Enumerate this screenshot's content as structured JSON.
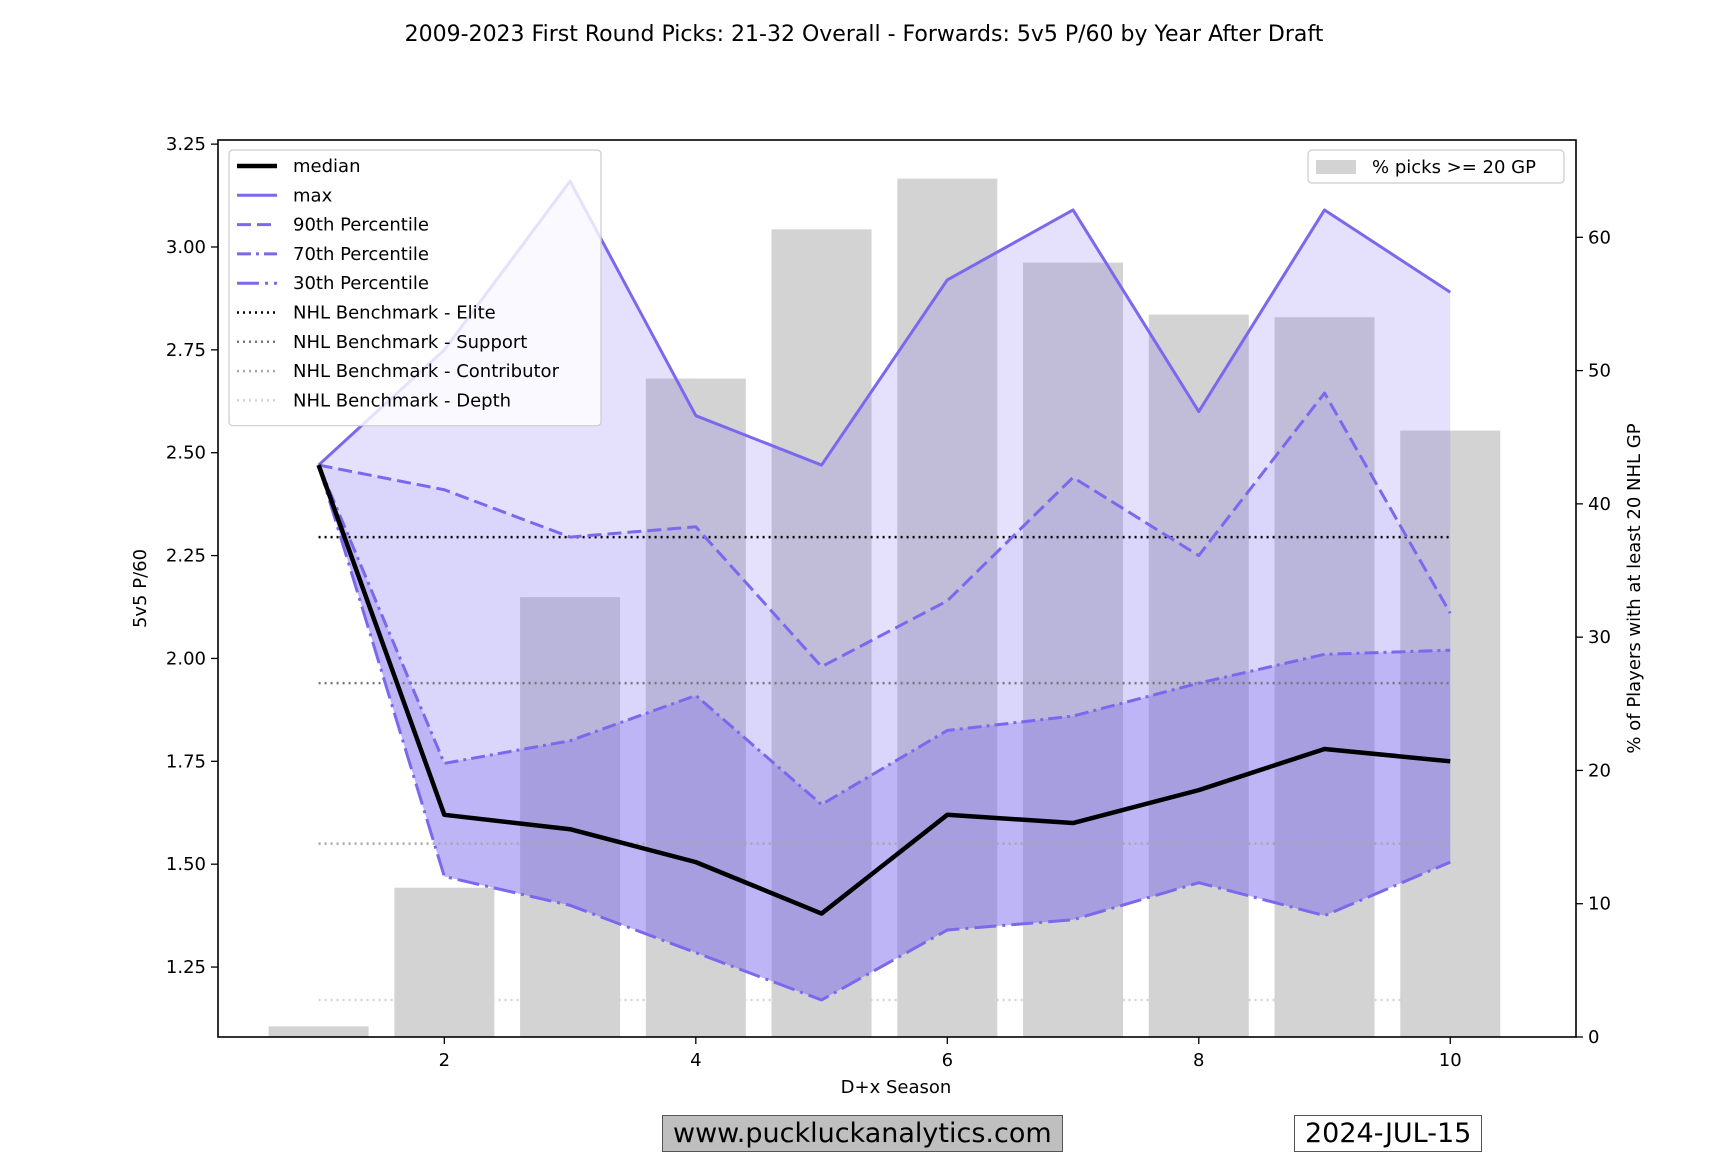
{
  "title": "2009-2023 First Round Picks: 21-32 Overall - Forwards: 5v5 P/60 by Year After Draft",
  "footer": {
    "website": "www.puckluckanalytics.com",
    "date": "2024-JUL-15"
  },
  "chart_data": {
    "type": "line",
    "xlabel": "D+x Season",
    "ylabel": "5v5 P/60",
    "y2label": "% of Players with at least 20 NHL GP",
    "xlim": [
      0.2,
      11.0
    ],
    "ylim": [
      1.08,
      3.26
    ],
    "y2lim": [
      0,
      67.3
    ],
    "xticks": [
      2,
      4,
      6,
      8,
      10
    ],
    "yticks": [
      1.25,
      1.5,
      1.75,
      2.0,
      2.25,
      2.5,
      2.75,
      3.0,
      3.25
    ],
    "y2ticks": [
      0,
      10,
      20,
      30,
      40,
      50,
      60
    ],
    "x": [
      1,
      2,
      3,
      4,
      5,
      6,
      7,
      8,
      9,
      10
    ],
    "series": [
      {
        "name": "median",
        "values": [
          2.47,
          1.62,
          1.585,
          1.505,
          1.38,
          1.62,
          1.6,
          1.68,
          1.78,
          1.75
        ],
        "color": "#000000",
        "style": "solid",
        "width": 4.5
      },
      {
        "name": "max",
        "values": [
          2.47,
          2.75,
          3.16,
          2.59,
          2.47,
          2.92,
          3.09,
          2.6,
          3.09,
          2.89
        ],
        "color": "#7b68ee",
        "style": "solid",
        "width": 3
      },
      {
        "name": "90th Percentile",
        "values": [
          2.47,
          2.41,
          2.295,
          2.32,
          1.98,
          2.14,
          2.44,
          2.25,
          2.645,
          2.11
        ],
        "color": "#7b68ee",
        "style": "dashed",
        "width": 3
      },
      {
        "name": "70th Percentile",
        "values": [
          2.47,
          1.745,
          1.8,
          1.91,
          1.645,
          1.825,
          1.86,
          1.94,
          2.01,
          2.02
        ],
        "color": "#7b68ee",
        "style": "dashdot",
        "width": 3
      },
      {
        "name": "30th Percentile",
        "values": [
          2.47,
          1.47,
          1.4,
          1.285,
          1.17,
          1.34,
          1.365,
          1.455,
          1.375,
          1.505
        ],
        "color": "#7b68ee",
        "style": "longdashdot",
        "width": 3
      }
    ],
    "benchmarks": [
      {
        "name": "NHL Benchmark - Elite",
        "value": 2.295,
        "color": "#000000"
      },
      {
        "name": "NHL Benchmark - Support",
        "value": 1.94,
        "color": "#777777"
      },
      {
        "name": "NHL Benchmark - Contributor",
        "value": 1.55,
        "color": "#a6a6a6"
      },
      {
        "name": "NHL Benchmark - Depth",
        "value": 1.17,
        "color": "#d3d3d3"
      }
    ],
    "bars": {
      "name": "% picks >= 20 GP",
      "values": [
        0.8,
        11.2,
        33.0,
        49.4,
        60.6,
        64.4,
        58.1,
        54.2,
        54.0,
        45.5
      ],
      "color": "#d3d3d3"
    },
    "fill_color": "#7b68ee",
    "legend_left": "top-left",
    "legend_right": "top-right",
    "grid": false
  }
}
